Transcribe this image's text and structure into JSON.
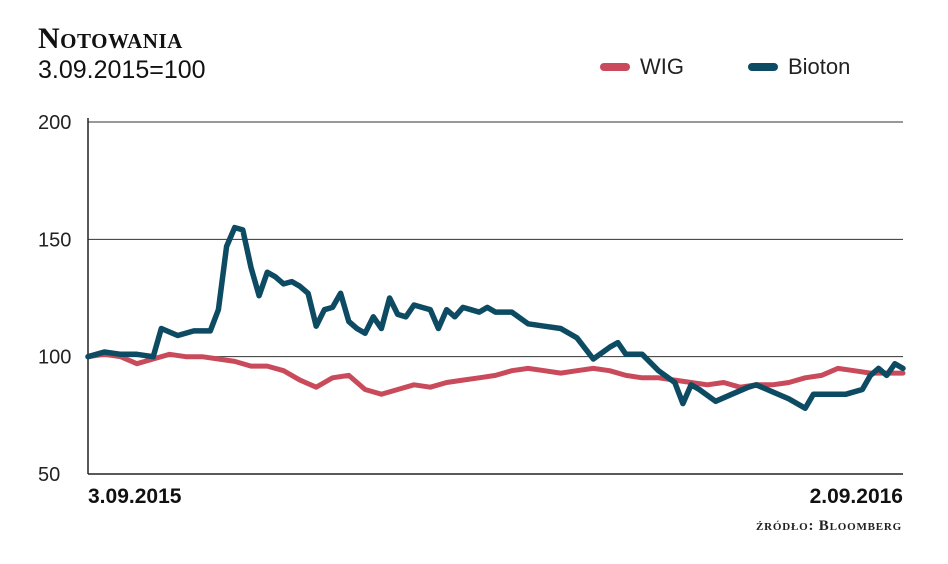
{
  "header": {
    "title": "Notowania",
    "subtitle": "3.09.2015=100"
  },
  "source_note": "źródło: Bloomberg",
  "chart_data": {
    "type": "line",
    "title": "Notowania",
    "subtitle": "3.09.2015=100",
    "xlabel": "",
    "ylabel": "",
    "ylim": [
      50,
      200
    ],
    "yticks": [
      200,
      150,
      100,
      50
    ],
    "x_start_label": "3.09.2015",
    "x_end_label": "2.09.2016",
    "grid": true,
    "legend": "top-right",
    "series": [
      {
        "name": "WIG",
        "color": "#c94a5a",
        "points": [
          [
            0,
            100
          ],
          [
            4,
            101
          ],
          [
            8,
            100
          ],
          [
            12,
            97
          ],
          [
            16,
            99
          ],
          [
            20,
            101
          ],
          [
            24,
            100
          ],
          [
            28,
            100
          ],
          [
            32,
            99
          ],
          [
            36,
            98
          ],
          [
            40,
            96
          ],
          [
            44,
            96
          ],
          [
            48,
            94
          ],
          [
            52,
            90
          ],
          [
            56,
            87
          ],
          [
            60,
            91
          ],
          [
            64,
            92
          ],
          [
            68,
            86
          ],
          [
            72,
            84
          ],
          [
            76,
            86
          ],
          [
            80,
            88
          ],
          [
            84,
            87
          ],
          [
            88,
            89
          ],
          [
            92,
            90
          ],
          [
            96,
            91
          ],
          [
            100,
            92
          ],
          [
            104,
            94
          ],
          [
            108,
            95
          ],
          [
            112,
            94
          ],
          [
            116,
            93
          ],
          [
            120,
            94
          ],
          [
            124,
            95
          ],
          [
            128,
            94
          ],
          [
            132,
            92
          ],
          [
            136,
            91
          ],
          [
            140,
            91
          ],
          [
            144,
            90
          ],
          [
            148,
            89
          ],
          [
            152,
            88
          ],
          [
            156,
            89
          ],
          [
            160,
            87
          ],
          [
            164,
            88
          ],
          [
            168,
            88
          ],
          [
            172,
            89
          ],
          [
            176,
            91
          ],
          [
            180,
            92
          ],
          [
            184,
            95
          ],
          [
            188,
            94
          ],
          [
            192,
            93
          ],
          [
            196,
            93
          ],
          [
            200,
            93
          ]
        ]
      },
      {
        "name": "Bioton",
        "color": "#0d4b63",
        "points": [
          [
            0,
            100
          ],
          [
            4,
            102
          ],
          [
            8,
            101
          ],
          [
            12,
            101
          ],
          [
            16,
            100
          ],
          [
            18,
            112
          ],
          [
            22,
            109
          ],
          [
            26,
            111
          ],
          [
            30,
            111
          ],
          [
            32,
            120
          ],
          [
            34,
            147
          ],
          [
            36,
            155
          ],
          [
            38,
            154
          ],
          [
            40,
            138
          ],
          [
            42,
            126
          ],
          [
            44,
            136
          ],
          [
            46,
            134
          ],
          [
            48,
            131
          ],
          [
            50,
            132
          ],
          [
            52,
            130
          ],
          [
            54,
            127
          ],
          [
            56,
            113
          ],
          [
            58,
            120
          ],
          [
            60,
            121
          ],
          [
            62,
            127
          ],
          [
            64,
            115
          ],
          [
            66,
            112
          ],
          [
            68,
            110
          ],
          [
            70,
            117
          ],
          [
            72,
            112
          ],
          [
            74,
            125
          ],
          [
            76,
            118
          ],
          [
            78,
            117
          ],
          [
            80,
            122
          ],
          [
            82,
            121
          ],
          [
            84,
            120
          ],
          [
            86,
            112
          ],
          [
            88,
            120
          ],
          [
            90,
            117
          ],
          [
            92,
            121
          ],
          [
            94,
            120
          ],
          [
            96,
            119
          ],
          [
            98,
            121
          ],
          [
            100,
            119
          ],
          [
            104,
            119
          ],
          [
            108,
            114
          ],
          [
            112,
            113
          ],
          [
            116,
            112
          ],
          [
            120,
            108
          ],
          [
            124,
            99
          ],
          [
            128,
            104
          ],
          [
            130,
            106
          ],
          [
            132,
            101
          ],
          [
            136,
            101
          ],
          [
            140,
            94
          ],
          [
            144,
            89
          ],
          [
            146,
            80
          ],
          [
            148,
            88
          ],
          [
            150,
            86
          ],
          [
            154,
            81
          ],
          [
            158,
            84
          ],
          [
            162,
            87
          ],
          [
            164,
            88
          ],
          [
            168,
            85
          ],
          [
            172,
            82
          ],
          [
            176,
            78
          ],
          [
            178,
            84
          ],
          [
            182,
            84
          ],
          [
            186,
            84
          ],
          [
            190,
            86
          ],
          [
            192,
            92
          ],
          [
            194,
            95
          ],
          [
            196,
            92
          ],
          [
            198,
            97
          ],
          [
            200,
            95
          ]
        ]
      }
    ]
  }
}
